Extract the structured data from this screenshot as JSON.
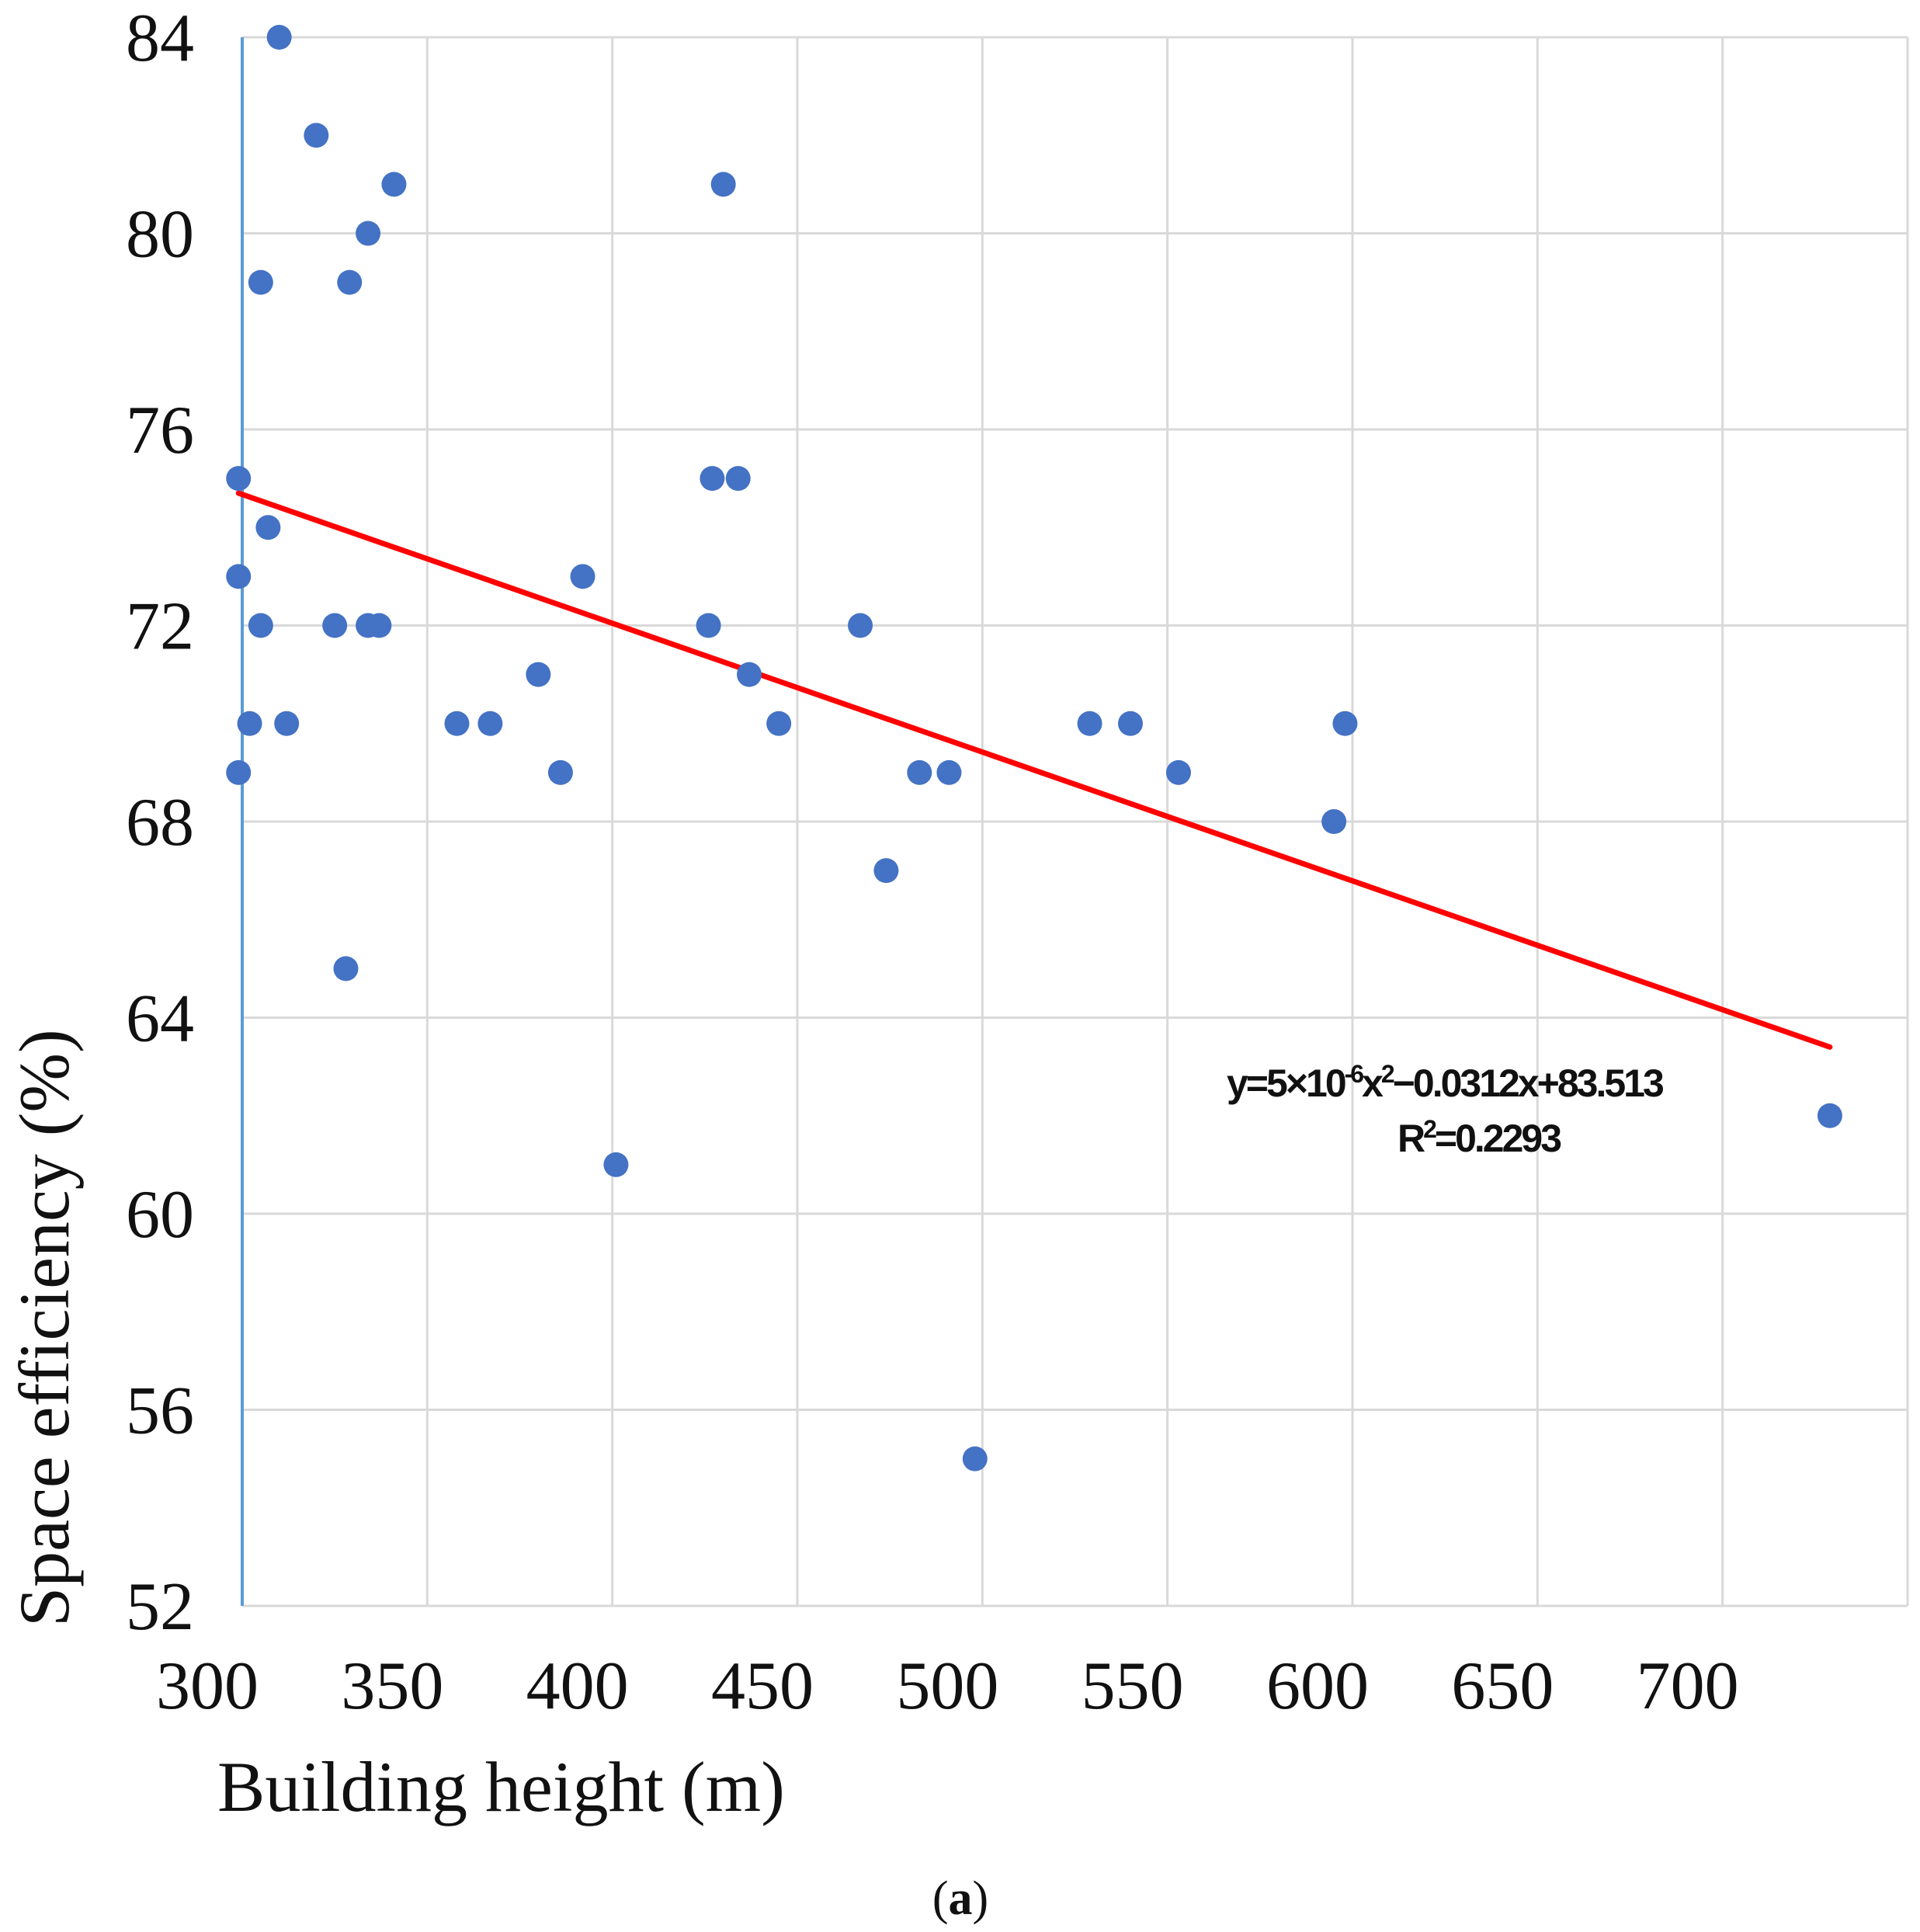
{
  "chart_data": {
    "type": "scatter",
    "xlabel": "Building height (m)",
    "ylabel": "Space efficiency (%)",
    "xlim": [
      300,
      750
    ],
    "ylim": [
      52,
      84
    ],
    "x_ticks": [
      300,
      350,
      400,
      450,
      500,
      550,
      600,
      650,
      700
    ],
    "y_ticks": [
      52,
      56,
      60,
      64,
      68,
      72,
      76,
      80,
      84
    ],
    "grid": true,
    "colors": {
      "points": "#4472c4",
      "trendline": "#ff0000",
      "left_axis": "#5b9bd5",
      "grid": "#d9d9d9"
    },
    "series": [
      {
        "name": "buildings",
        "points": [
          {
            "x": 310,
            "y": 84
          },
          {
            "x": 320,
            "y": 82
          },
          {
            "x": 341,
            "y": 81
          },
          {
            "x": 430,
            "y": 81
          },
          {
            "x": 334,
            "y": 80
          },
          {
            "x": 305,
            "y": 79
          },
          {
            "x": 329,
            "y": 79
          },
          {
            "x": 299,
            "y": 75
          },
          {
            "x": 427,
            "y": 75
          },
          {
            "x": 434,
            "y": 75
          },
          {
            "x": 307,
            "y": 74
          },
          {
            "x": 299,
            "y": 73
          },
          {
            "x": 392,
            "y": 73
          },
          {
            "x": 305,
            "y": 72
          },
          {
            "x": 325,
            "y": 72
          },
          {
            "x": 334,
            "y": 72
          },
          {
            "x": 337,
            "y": 72
          },
          {
            "x": 426,
            "y": 72
          },
          {
            "x": 467,
            "y": 72
          },
          {
            "x": 380,
            "y": 71
          },
          {
            "x": 437,
            "y": 71
          },
          {
            "x": 302,
            "y": 70
          },
          {
            "x": 312,
            "y": 70
          },
          {
            "x": 358,
            "y": 70
          },
          {
            "x": 367,
            "y": 70
          },
          {
            "x": 445,
            "y": 70
          },
          {
            "x": 529,
            "y": 70
          },
          {
            "x": 540,
            "y": 70
          },
          {
            "x": 598,
            "y": 70
          },
          {
            "x": 299,
            "y": 69
          },
          {
            "x": 386,
            "y": 69
          },
          {
            "x": 483,
            "y": 69
          },
          {
            "x": 491,
            "y": 69
          },
          {
            "x": 553,
            "y": 69
          },
          {
            "x": 595,
            "y": 68
          },
          {
            "x": 474,
            "y": 67
          },
          {
            "x": 328,
            "y": 65
          },
          {
            "x": 729,
            "y": 62
          },
          {
            "x": 401,
            "y": 61
          },
          {
            "x": 498,
            "y": 55
          }
        ]
      }
    ],
    "trendline": {
      "x_range": [
        299,
        729
      ],
      "y_start": 74.7,
      "y_end": 63.4,
      "equation": "y=5×10",
      "equation_exp": "-6",
      "equation_mid": "x",
      "equation_mid_exp": "2",
      "equation_tail": "−0.0312x+83.513",
      "r2_base": "R",
      "r2_exp": "2",
      "r2_tail": "=0.2293"
    },
    "panel_label": {
      "open": "(",
      "letter": "a",
      "close": ")"
    }
  }
}
